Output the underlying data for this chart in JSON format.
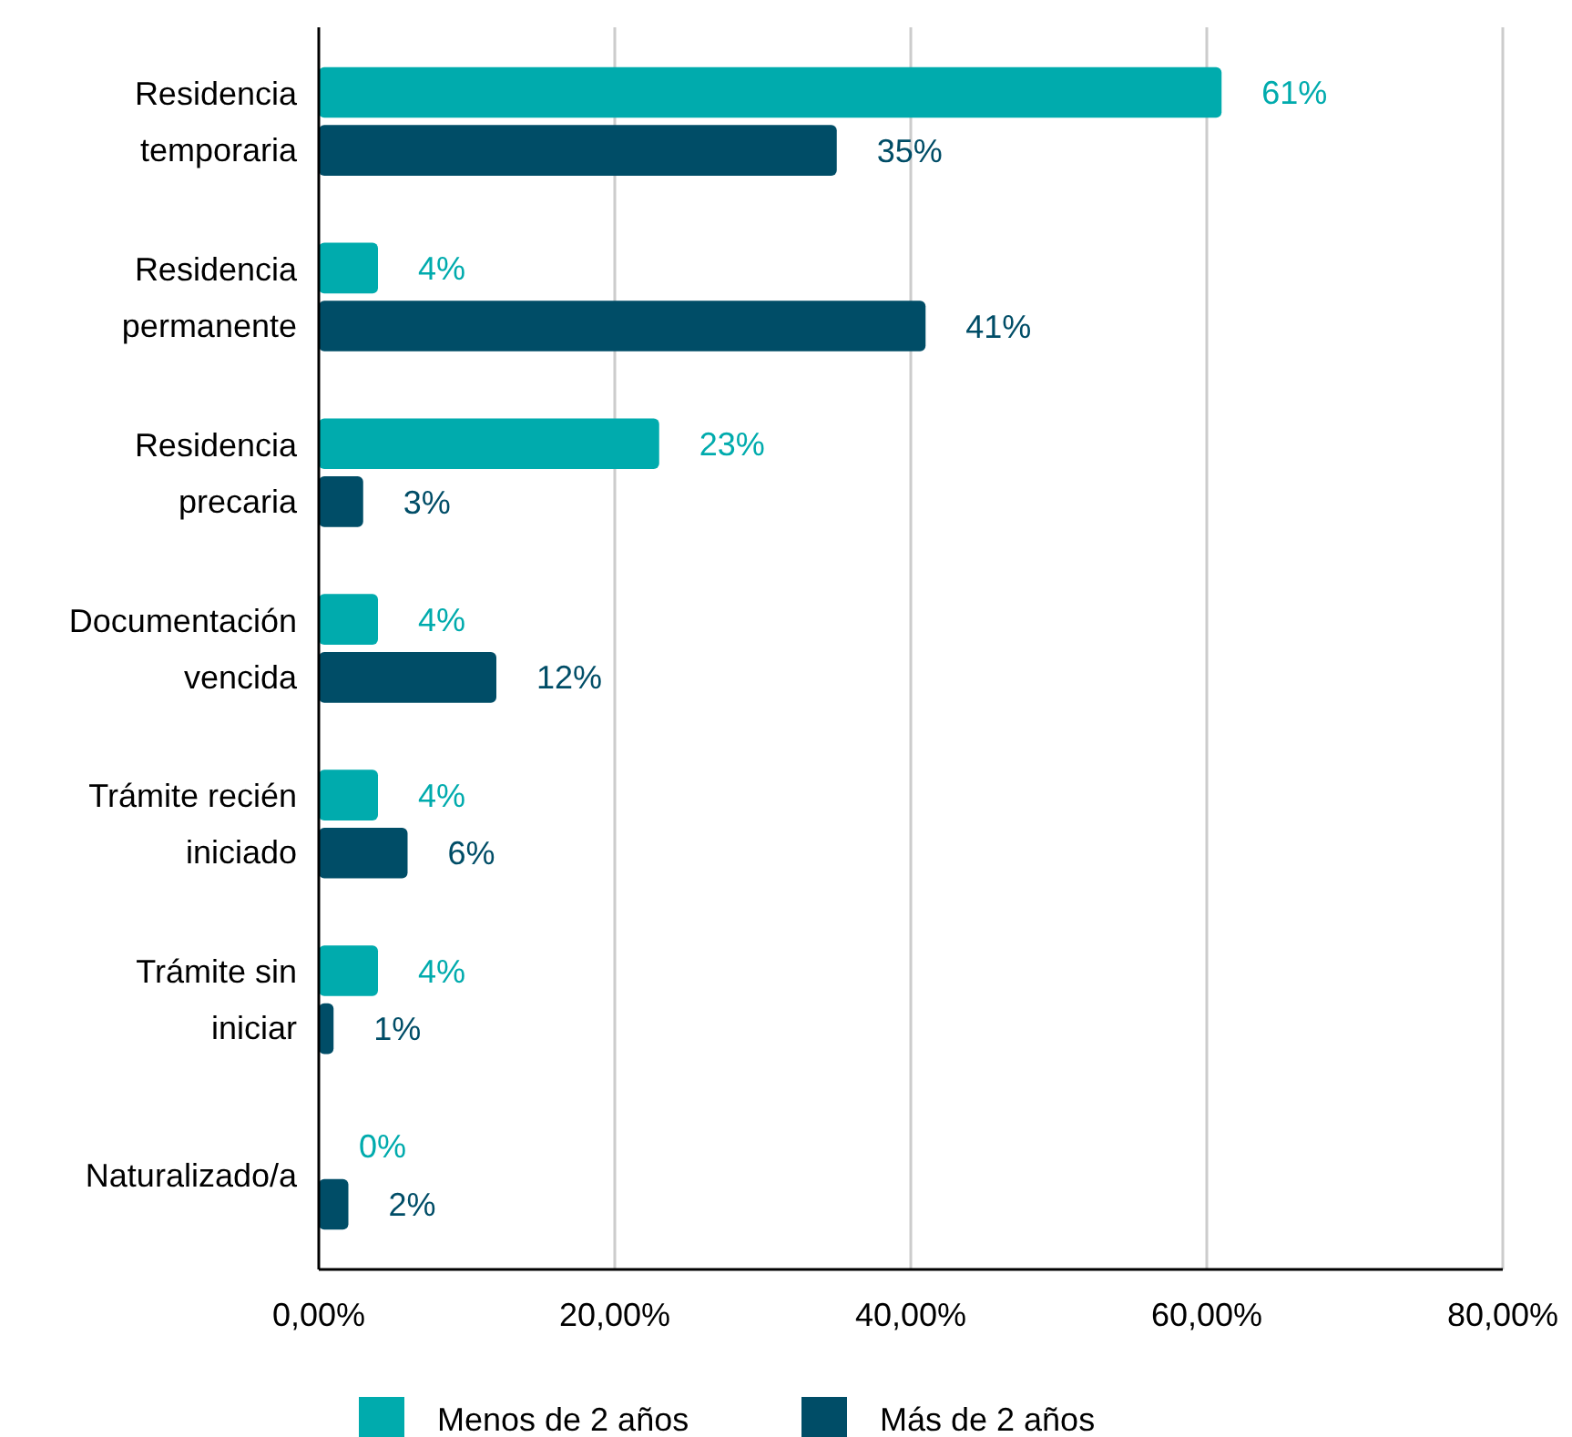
{
  "chart_data": {
    "type": "bar",
    "orientation": "horizontal",
    "categories": [
      "Residencia temporaria",
      "Residencia permanente",
      "Residencia precaria",
      "Documentación vencida",
      "Trámite recién iniciado",
      "Trámite sin iniciar",
      "Naturalizado/a"
    ],
    "series": [
      {
        "name": "Menos de 2 años",
        "color": "#00abad",
        "values": [
          61,
          4,
          23,
          4,
          4,
          4,
          0
        ],
        "value_labels": [
          "61%",
          "4%",
          "23%",
          "4%",
          "4%",
          "4%",
          "0%"
        ]
      },
      {
        "name": "Más de 2 años",
        "color": "#004d67",
        "values": [
          35,
          41,
          3,
          12,
          6,
          1,
          2
        ],
        "value_labels": [
          "35%",
          "41%",
          "3%",
          "12%",
          "6%",
          "1%",
          "2%"
        ]
      }
    ],
    "xlim": [
      0,
      80
    ],
    "xticks": [
      {
        "value": 0,
        "label": "0,00%"
      },
      {
        "value": 20,
        "label": "20,00%"
      },
      {
        "value": 40,
        "label": "40,00%"
      },
      {
        "value": 60,
        "label": "60,00%"
      },
      {
        "value": 80,
        "label": "80,00%"
      }
    ],
    "grid": "x",
    "legend": "bottom"
  }
}
